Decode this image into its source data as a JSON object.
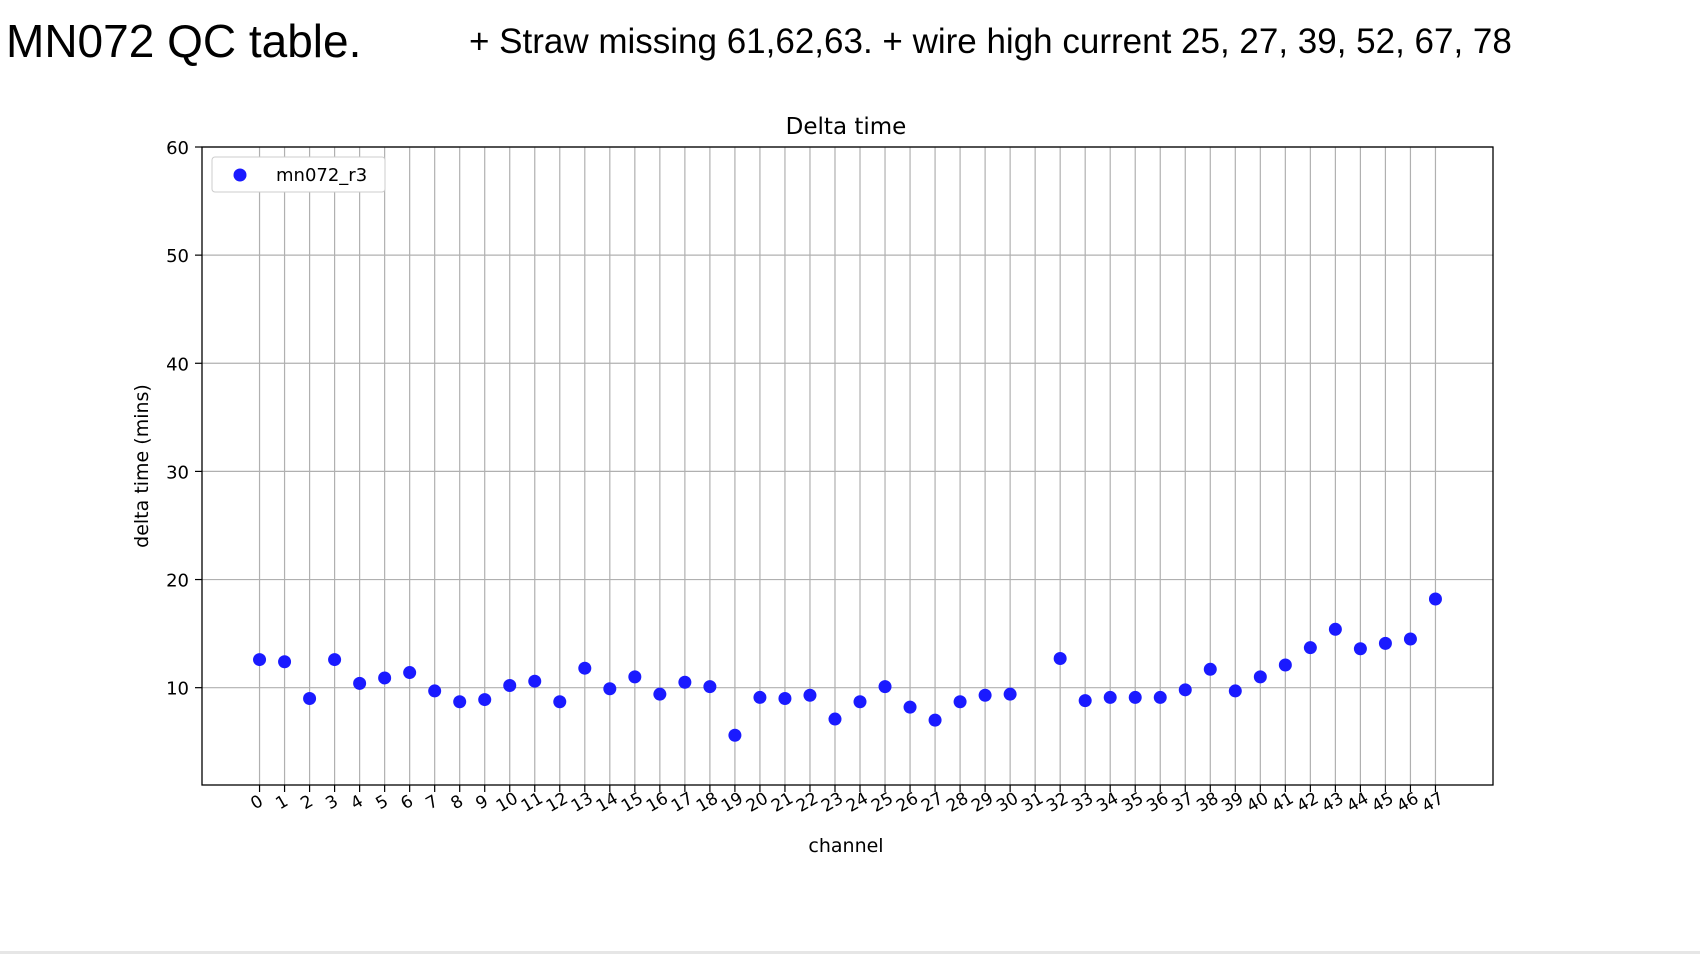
{
  "slide": {
    "title": "MN072 QC table.",
    "note": "+ Straw missing 61,62,63.  + wire high current 25, 27, 39, 52, 67, 78"
  },
  "chart_data": {
    "type": "scatter",
    "title": "Delta time",
    "xlabel": "channel",
    "ylabel": "delta time (mins)",
    "ylim": [
      1,
      60
    ],
    "yticks": [
      10,
      20,
      30,
      40,
      50,
      60
    ],
    "xlim": [
      -2.3,
      49.3
    ],
    "x_tick_labels": [
      "0",
      "1",
      "2",
      "3",
      "4",
      "5",
      "6",
      "7",
      "8",
      "9",
      "10",
      "11",
      "12",
      "13",
      "14",
      "15",
      "16",
      "17",
      "18",
      "19",
      "20",
      "21",
      "22",
      "23",
      "24",
      "25",
      "26",
      "27",
      "28",
      "29",
      "30",
      "31",
      "32",
      "33",
      "34",
      "35",
      "36",
      "37",
      "38",
      "39",
      "40",
      "41",
      "42",
      "43",
      "44",
      "45",
      "46",
      "47"
    ],
    "grid": true,
    "legend_position": "top-left",
    "marker_color": "#1a1aff",
    "series": [
      {
        "name": "mn072_r3",
        "x": [
          0,
          1,
          2,
          3,
          4,
          5,
          6,
          7,
          8,
          9,
          10,
          11,
          12,
          13,
          14,
          15,
          16,
          17,
          18,
          19,
          20,
          21,
          22,
          23,
          24,
          25,
          26,
          27,
          28,
          29,
          30,
          32,
          33,
          34,
          35,
          36,
          37,
          38,
          39,
          40,
          41,
          42,
          43,
          44,
          45,
          46,
          47
        ],
        "y": [
          12.6,
          12.4,
          9.0,
          12.6,
          10.4,
          10.9,
          11.4,
          9.7,
          8.7,
          8.9,
          10.2,
          10.6,
          8.7,
          11.8,
          9.9,
          11.0,
          9.4,
          10.5,
          10.1,
          5.6,
          9.1,
          9.0,
          9.3,
          7.1,
          8.7,
          10.1,
          8.2,
          7.0,
          8.7,
          9.3,
          9.4,
          12.7,
          8.8,
          9.1,
          9.1,
          9.1,
          9.8,
          11.7,
          9.7,
          11.0,
          12.1,
          13.7,
          15.4,
          13.6,
          14.1,
          14.5,
          18.2
        ]
      }
    ]
  }
}
